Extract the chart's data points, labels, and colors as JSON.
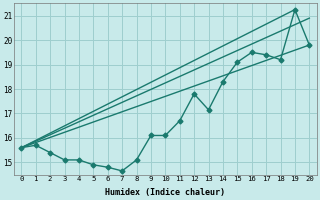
{
  "xlabel": "Humidex (Indice chaleur)",
  "xlim": [
    -0.5,
    20.5
  ],
  "ylim": [
    14.5,
    21.5
  ],
  "yticks": [
    15,
    16,
    17,
    18,
    19,
    20,
    21
  ],
  "xticks": [
    0,
    1,
    2,
    3,
    4,
    5,
    6,
    7,
    8,
    9,
    10,
    11,
    12,
    13,
    14,
    15,
    16,
    17,
    18,
    19,
    20
  ],
  "background_color": "#c8eaea",
  "grid_color": "#9ecece",
  "line_color": "#1a7a6e",
  "series": [
    {
      "x": [
        0,
        1,
        2,
        3,
        4,
        5,
        6,
        7,
        8,
        9,
        10,
        11,
        12,
        13,
        14,
        15,
        16,
        17,
        18,
        19,
        20
      ],
      "y": [
        15.6,
        15.7,
        15.4,
        15.1,
        15.1,
        14.9,
        14.8,
        14.65,
        15.1,
        16.1,
        16.1,
        16.7,
        17.8,
        17.15,
        18.3,
        19.1,
        19.5,
        19.4,
        19.2,
        21.25,
        19.8
      ],
      "marker": "D",
      "markersize": 2.5,
      "linewidth": 1.0
    },
    {
      "x": [
        0,
        20
      ],
      "y": [
        15.6,
        19.8
      ],
      "marker": null,
      "linewidth": 1.0
    },
    {
      "x": [
        0,
        19
      ],
      "y": [
        15.6,
        21.25
      ],
      "marker": null,
      "linewidth": 1.0
    },
    {
      "x": [
        0,
        20
      ],
      "y": [
        15.6,
        20.9
      ],
      "marker": null,
      "linewidth": 1.0
    }
  ]
}
